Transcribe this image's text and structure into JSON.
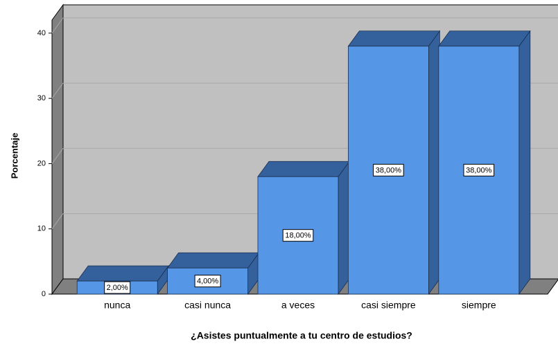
{
  "chart_data": {
    "type": "bar",
    "categories": [
      "nunca",
      "casi nunca",
      "a veces",
      "casi siempre",
      "siempre"
    ],
    "values": [
      2,
      4,
      18,
      38,
      38
    ],
    "value_labels": [
      "2,00%",
      "4,00%",
      "18,00%",
      "38,00%",
      "38,00%"
    ],
    "color": "#5596e6",
    "ylim": [
      0,
      42
    ],
    "yticks": [
      0,
      10,
      20,
      30,
      40
    ],
    "grid": true,
    "y_label": "Porcentaje",
    "x_label": "¿Asistes puntualmente a tu centro de estudios?"
  }
}
